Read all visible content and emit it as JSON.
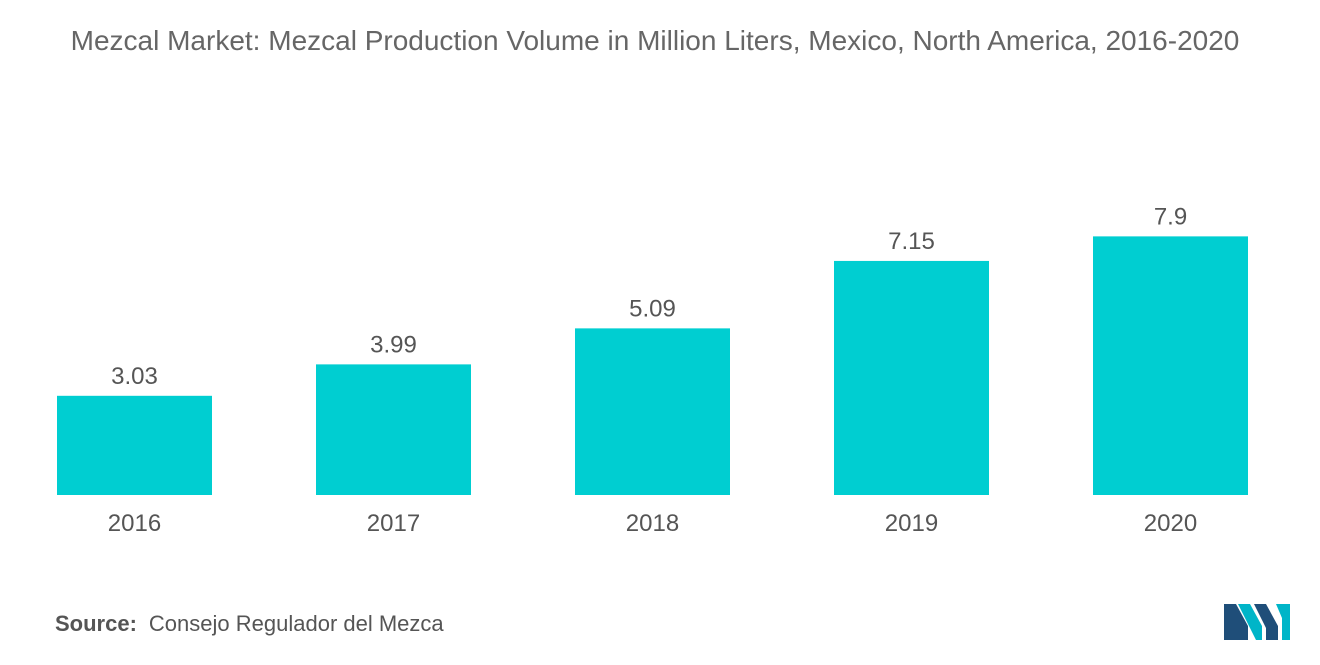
{
  "title": "Mezcal Market: Mezcal Production Volume in Million Liters, Mexico, North America, 2016-2020",
  "source": {
    "label": "Source:",
    "text": "Consejo Regulador del Mezca"
  },
  "colors": {
    "bar": "#00CED1",
    "text": "#555555",
    "title": "#666666",
    "logo_dark": "#1F4E79",
    "logo_light": "#00B5C8"
  },
  "chart_data": {
    "type": "bar",
    "title": "Mezcal Market: Mezcal Production Volume in Million Liters, Mexico, North America, 2016-2020",
    "categories": [
      "2016",
      "2017",
      "2018",
      "2019",
      "2020"
    ],
    "values": [
      3.03,
      3.99,
      5.09,
      7.15,
      7.9
    ],
    "value_labels": [
      "3.03",
      "3.99",
      "5.09",
      "7.15",
      "7.9"
    ],
    "xlabel": "",
    "ylabel": "",
    "ylim": [
      0,
      9.5
    ],
    "grid": false,
    "legend": "none"
  }
}
